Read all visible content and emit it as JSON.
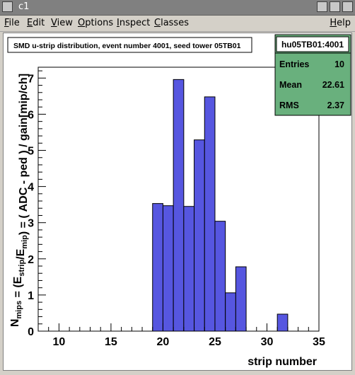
{
  "window": {
    "title": "c1"
  },
  "menu": {
    "items": [
      {
        "label": "File",
        "ul": "F",
        "rest": "ile",
        "right": false
      },
      {
        "label": "Edit",
        "ul": "E",
        "rest": "dit",
        "right": false
      },
      {
        "label": "View",
        "ul": "V",
        "rest": "iew",
        "right": false
      },
      {
        "label": "Options",
        "ul": "O",
        "rest": "ptions",
        "right": false
      },
      {
        "label": "Inspect",
        "ul": "I",
        "rest": "nspect",
        "right": false
      },
      {
        "label": "Classes",
        "ul": "C",
        "rest": "lasses",
        "right": false
      },
      {
        "label": "Help",
        "ul": "H",
        "rest": "elp",
        "right": true
      }
    ]
  },
  "plot": {
    "title": "SMD u-strip distribution, event number 4001, seed tower 05TB01",
    "stats": {
      "name": "hu05TB01:4001",
      "entries_label": "Entries",
      "entries": "10",
      "mean_label": "Mean",
      "mean": "22.61",
      "rms_label": "RMS",
      "rms": "2.37"
    }
  },
  "chart_data": {
    "type": "bar",
    "xlabel": "strip number",
    "ylabel": "N_mips = (E_strip/E_mip) = ( ADC - ped ) / gain[mip/ch]",
    "xlim": [
      8,
      35
    ],
    "ylim": [
      0,
      7.3
    ],
    "bin_width": 1,
    "bins": [
      {
        "low": 19,
        "value": 3.53
      },
      {
        "low": 20,
        "value": 3.47
      },
      {
        "low": 21,
        "value": 6.96
      },
      {
        "low": 22,
        "value": 3.45
      },
      {
        "low": 23,
        "value": 5.29
      },
      {
        "low": 24,
        "value": 6.48
      },
      {
        "low": 25,
        "value": 3.04
      },
      {
        "low": 26,
        "value": 1.06
      },
      {
        "low": 27,
        "value": 1.78
      },
      {
        "low": 31,
        "value": 0.47
      }
    ],
    "xticks": [
      10,
      15,
      20,
      25,
      30,
      35
    ],
    "yticks": [
      0,
      1,
      2,
      3,
      4,
      5,
      6,
      7
    ],
    "fill_color": "#5656e0",
    "line_color": "#000000"
  }
}
